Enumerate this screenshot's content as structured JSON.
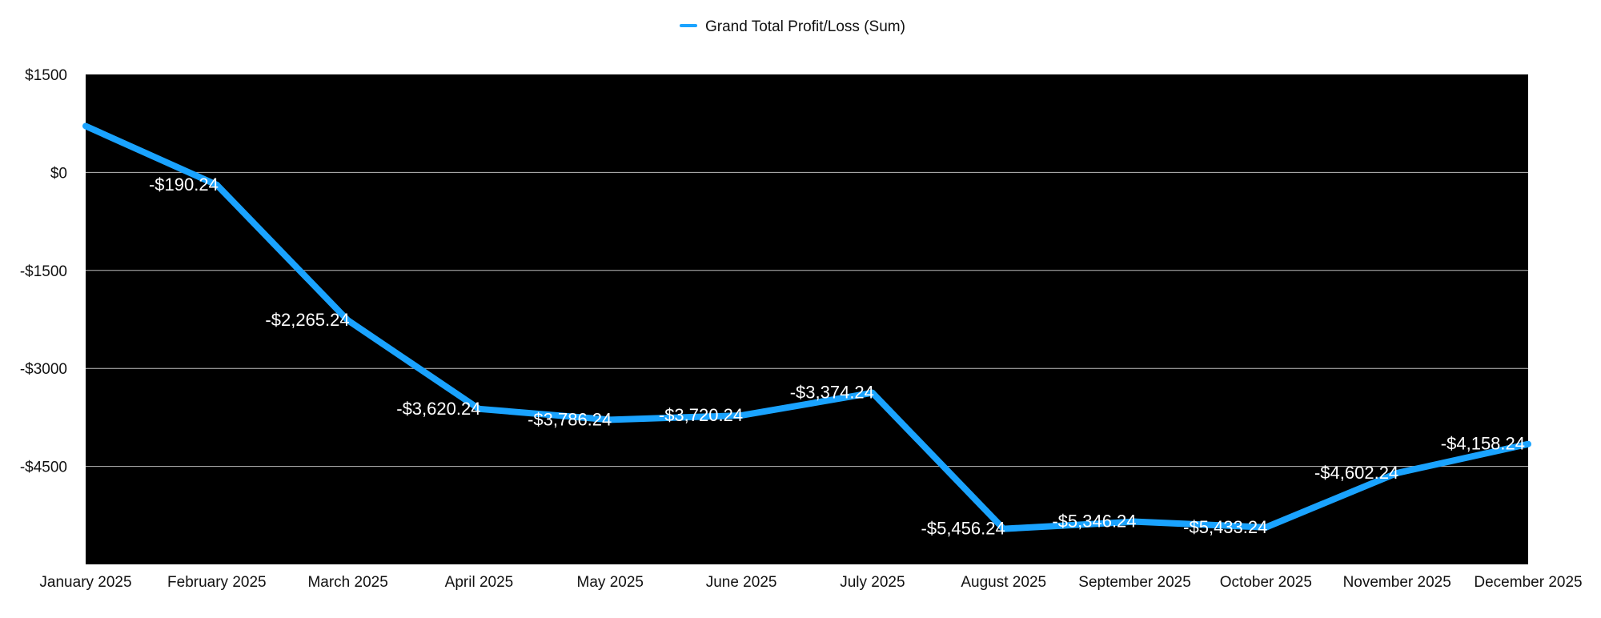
{
  "chart_data": {
    "type": "line",
    "title": "",
    "xlabel": "",
    "ylabel": "",
    "legend": {
      "position": "top-center"
    },
    "ylim": [
      -6000,
      1500
    ],
    "yticks": [
      1500,
      0,
      -1500,
      -3000,
      -4500
    ],
    "ytick_labels": [
      "$1500",
      "$0",
      "-$1500",
      "-$3000",
      "-$4500"
    ],
    "grid": true,
    "background": "#000000",
    "categories": [
      "January 2025",
      "February 2025",
      "March 2025",
      "April 2025",
      "May 2025",
      "June 2025",
      "July 2025",
      "August 2025",
      "September 2025",
      "October 2025",
      "November 2025",
      "December 2025"
    ],
    "series": [
      {
        "name": "Grand Total Profit/Loss (Sum)",
        "color": "#1aa3ff",
        "values": [
          709.76,
          -190.24,
          -2265.24,
          -3620.24,
          -3786.24,
          -3720.24,
          -3374.24,
          -5456.24,
          -5346.24,
          -5433.24,
          -4602.24,
          -4158.24
        ],
        "data_labels": [
          "",
          "-$190.24",
          "-$2,265.24",
          "-$3,620.24",
          "-$3,786.24",
          "-$3,720.24",
          "-$3,374.24",
          "-$5,456.24",
          "-$5,346.24",
          "-$5,433.24",
          "-$4,602.24",
          "-$4,158.24"
        ]
      }
    ]
  }
}
